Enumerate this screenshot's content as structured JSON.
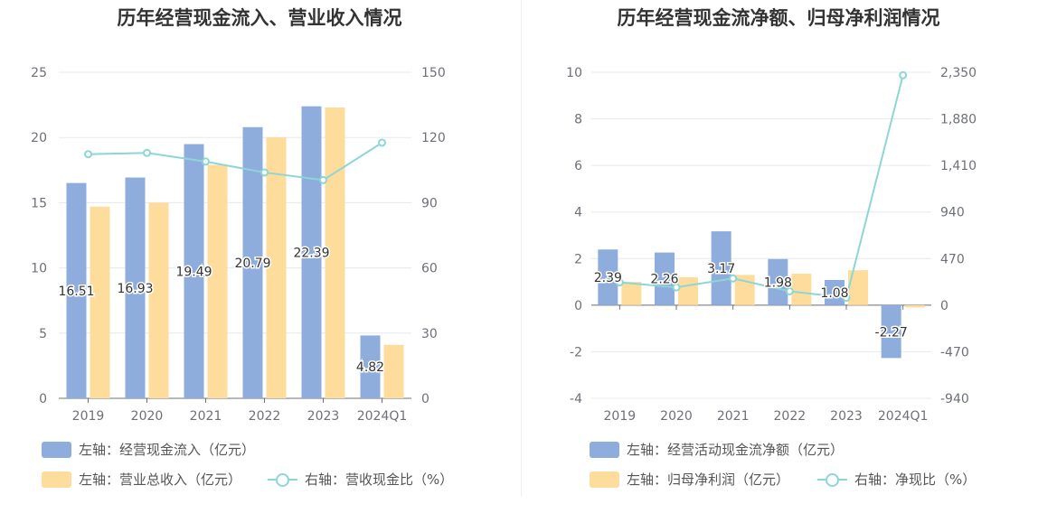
{
  "colors": {
    "bar1": "#8eaddc",
    "bar2": "#fddc9c",
    "line": "#8dd6d6",
    "grid": "#e6e8f0",
    "axis": "#6e7079"
  },
  "chart_data": [
    {
      "type": "bar",
      "title": "历年经营现金流入、营业收入情况",
      "categories": [
        "2019",
        "2020",
        "2021",
        "2022",
        "2023",
        "2024Q1"
      ],
      "left_axis": {
        "ylim": [
          0,
          25
        ],
        "ticks": [
          "0",
          "5",
          "10",
          "15",
          "20",
          "25"
        ]
      },
      "right_axis": {
        "ylim": [
          0,
          150
        ],
        "ticks": [
          "0",
          "30",
          "60",
          "90",
          "120",
          "150"
        ]
      },
      "series": [
        {
          "name": "左轴：经营现金流入（亿元）",
          "type": "bar",
          "axis": "left",
          "values": [
            16.51,
            16.93,
            19.49,
            20.79,
            22.39,
            4.82
          ],
          "labels": [
            "16.51",
            "16.93",
            "19.49",
            "20.79",
            "22.39",
            "4.82"
          ]
        },
        {
          "name": "左轴：营业总收入（亿元）",
          "type": "bar",
          "axis": "left",
          "values": [
            14.7,
            15.0,
            17.9,
            20.0,
            22.3,
            4.1
          ]
        },
        {
          "name": "右轴：营收现金比（%）",
          "type": "line",
          "axis": "right",
          "values": [
            112.3,
            112.9,
            108.9,
            103.9,
            100.4,
            117.6
          ]
        }
      ],
      "legend": "bottom"
    },
    {
      "type": "bar",
      "title": "历年经营现金流净额、归母净利润情况",
      "categories": [
        "2019",
        "2020",
        "2021",
        "2022",
        "2023",
        "2024Q1"
      ],
      "left_axis": {
        "ylim": [
          -4,
          10
        ],
        "ticks": [
          "-4",
          "-2",
          "0",
          "2",
          "4",
          "6",
          "8",
          "10"
        ]
      },
      "right_axis": {
        "ylim": [
          -940,
          2350
        ],
        "ticks": [
          "-940",
          "-470",
          "0",
          "470",
          "940",
          "1,410",
          "1,880",
          "2,350"
        ]
      },
      "series": [
        {
          "name": "左轴：经营活动现金流净额（亿元）",
          "type": "bar",
          "axis": "left",
          "values": [
            2.39,
            2.26,
            3.17,
            1.98,
            1.08,
            -2.27
          ],
          "labels": [
            "2.39",
            "2.26",
            "3.17",
            "1.98",
            "1.08",
            "-2.27"
          ]
        },
        {
          "name": "左轴：归母净利润（亿元）",
          "type": "bar",
          "axis": "left",
          "values": [
            1.0,
            1.2,
            1.3,
            1.35,
            1.5,
            -0.1
          ]
        },
        {
          "name": "右轴：净现比（%）",
          "type": "line",
          "axis": "right",
          "values": [
            230,
            180,
            270,
            140,
            75,
            2320
          ]
        }
      ],
      "legend": "bottom"
    }
  ]
}
